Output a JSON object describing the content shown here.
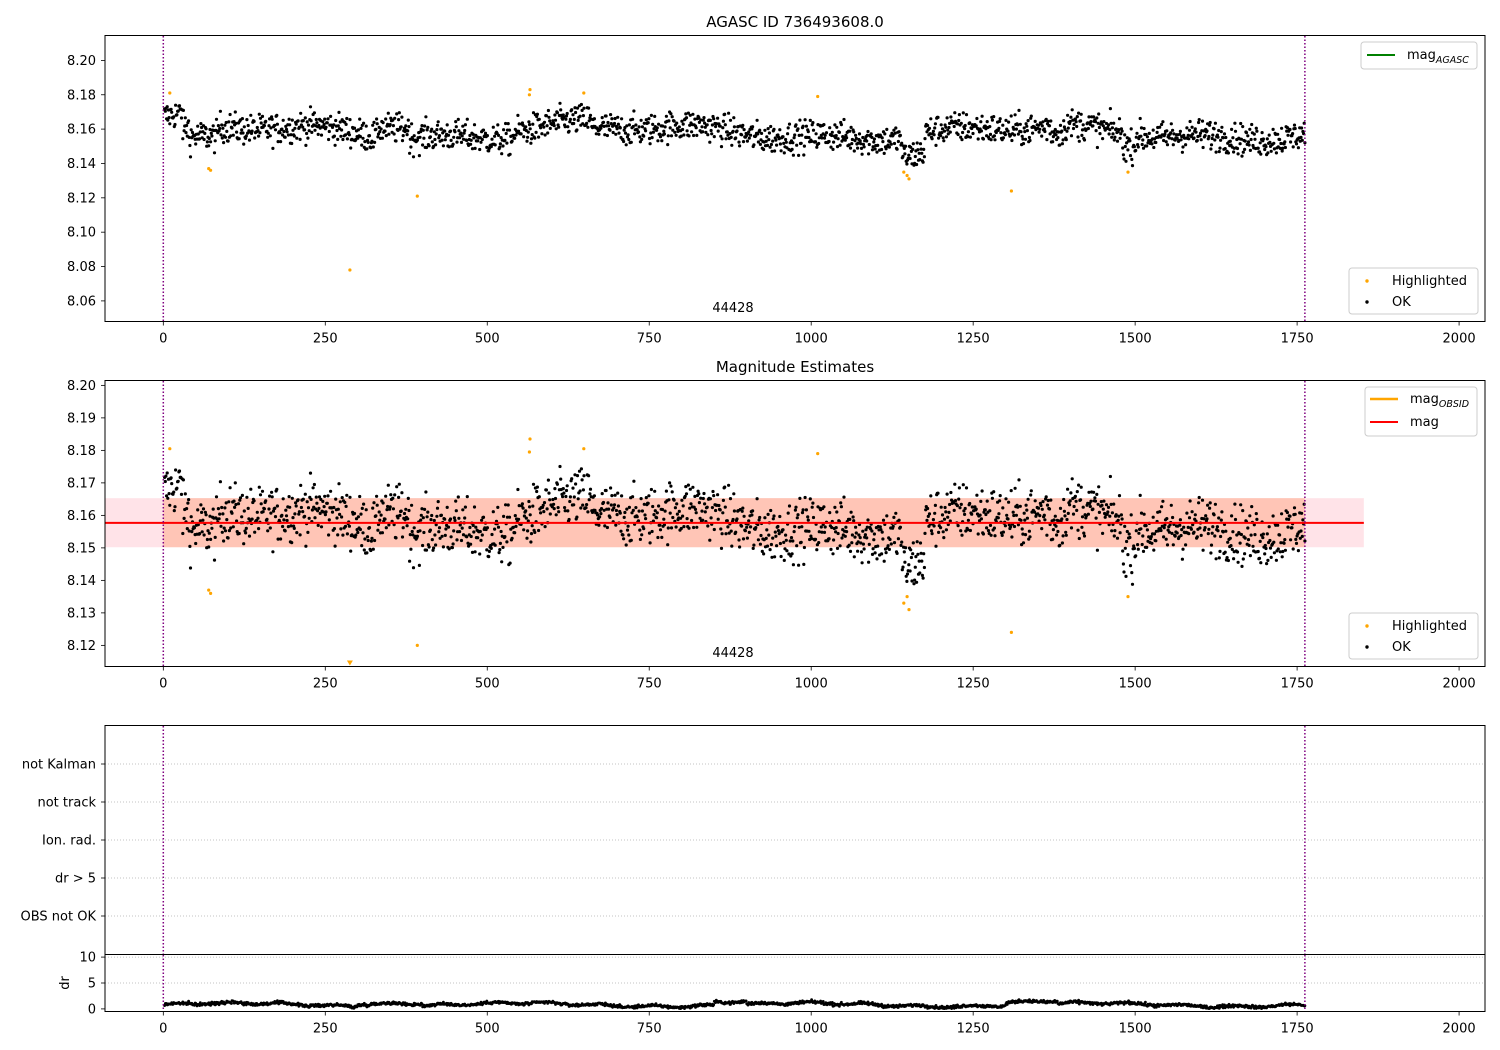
{
  "colors": {
    "ok": "#000000",
    "highlighted": "#ffa500",
    "mag_agasc": "#008000",
    "mag_obsid": "#ffa500",
    "mag": "#ff0000",
    "obs_band": "#ffa07a",
    "mag_band": "#ffc0cb",
    "obs_boundary": "#800080",
    "grid": "#b0b0b0"
  },
  "obsid_label": "44428",
  "chart_data": [
    {
      "type": "scatter",
      "title": "AGASC ID 736493608.0",
      "xlim": [
        -90,
        2040
      ],
      "ylim": [
        8.048,
        8.2145
      ],
      "xticks": [
        "0",
        "250",
        "500",
        "750",
        "1000",
        "1250",
        "1500",
        "1750",
        "2000"
      ],
      "yticks": [
        "8.06",
        "8.08",
        "8.10",
        "8.12",
        "8.14",
        "8.16",
        "8.18",
        "8.20"
      ],
      "observation_bounds": [
        0,
        1762
      ],
      "obsid_label": "44428",
      "legend_lines": [
        {
          "label_main": "mag",
          "label_sub": "AGASC",
          "color": "#008000"
        }
      ],
      "legend_points": [
        "Highlighted",
        "OK"
      ],
      "ok_series": {
        "name": "OK",
        "n_points": 1760,
        "x_range": [
          2,
          1762
        ],
        "center": 8.158,
        "scatter": 0.008
      },
      "highlighted": {
        "name": "Highlighted",
        "points": [
          [
            10,
            8.181
          ],
          [
            70,
            8.137
          ],
          [
            73,
            8.136
          ],
          [
            288,
            8.078
          ],
          [
            392,
            8.121
          ],
          [
            565,
            8.18
          ],
          [
            566,
            8.183
          ],
          [
            649,
            8.181
          ],
          [
            1010,
            8.179
          ],
          [
            1143,
            8.135
          ],
          [
            1148,
            8.133
          ],
          [
            1151,
            8.131
          ],
          [
            1309,
            8.124
          ],
          [
            1489,
            8.135
          ]
        ]
      }
    },
    {
      "type": "scatter",
      "title": "Magnitude Estimates",
      "xlim": [
        -90,
        2040
      ],
      "ylim": [
        8.1135,
        8.2015
      ],
      "xticks": [
        "0",
        "250",
        "500",
        "750",
        "1000",
        "1250",
        "1500",
        "1750",
        "2000"
      ],
      "yticks": [
        "8.12",
        "8.13",
        "8.14",
        "8.15",
        "8.16",
        "8.17",
        "8.18",
        "8.19",
        "8.20"
      ],
      "observation_bounds": [
        0,
        1762
      ],
      "obsid_label": "44428",
      "mag": 8.1577,
      "band": [
        8.1502,
        8.1653
      ],
      "band_x": [
        -90,
        1853
      ],
      "obs_band_x": [
        0,
        1762
      ],
      "legend_lines": [
        {
          "label_main": "mag",
          "label_sub": "OBSID",
          "color": "#ffa500"
        },
        {
          "label_main": "mag",
          "label_sub": "",
          "color": "#ff0000"
        }
      ],
      "legend_points": [
        "Highlighted",
        "OK"
      ],
      "ok_series": {
        "name": "OK",
        "n_points": 1760,
        "x_range": [
          2,
          1762
        ],
        "center": 8.158,
        "scatter": 0.008
      },
      "highlighted": {
        "name": "Highlighted",
        "points": [
          [
            10,
            8.1805
          ],
          [
            70,
            8.137
          ],
          [
            73,
            8.136
          ],
          [
            392,
            8.12
          ],
          [
            565,
            8.1795
          ],
          [
            566,
            8.1835
          ],
          [
            649,
            8.1805
          ],
          [
            1010,
            8.179
          ],
          [
            1143,
            8.133
          ],
          [
            1148,
            8.135
          ],
          [
            1151,
            8.131
          ],
          [
            1309,
            8.124
          ],
          [
            1489,
            8.135
          ]
        ]
      },
      "off_scale_markers": [
        [
          288,
          "below"
        ]
      ]
    },
    {
      "type": "scatter",
      "title": "",
      "xlim": [
        -90,
        2040
      ],
      "categories": [
        "not Kalman",
        "not track",
        "Ion. rad.",
        "dr > 5",
        "OBS not OK"
      ],
      "observation_bounds": [
        0,
        1762
      ],
      "flag_points": []
    },
    {
      "type": "line",
      "title": "",
      "ylabel": "dr",
      "xlim": [
        -90,
        2040
      ],
      "ylim": [
        -0.5,
        10.5
      ],
      "xticks": [
        "0",
        "250",
        "500",
        "750",
        "1000",
        "1250",
        "1500",
        "1750",
        "2000"
      ],
      "yticks": [
        "0",
        "5",
        "10"
      ],
      "observation_bounds": [
        0,
        1762
      ],
      "series": [
        {
          "n_points": 1760,
          "x_range": [
            2,
            1762
          ],
          "mean": 0.8,
          "max": 1.8
        }
      ]
    }
  ]
}
